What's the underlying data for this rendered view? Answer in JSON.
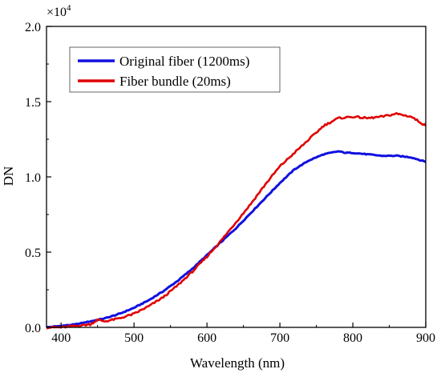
{
  "chart_data": {
    "type": "line",
    "xlabel": "Wavelength (nm)",
    "ylabel": "DN",
    "y_multiplier_label": "×10",
    "y_multiplier_exponent": "4",
    "xlim": [
      380,
      900
    ],
    "ylim": [
      0,
      2.0
    ],
    "x_ticks": [
      "400",
      "500",
      "600",
      "700",
      "800",
      "900"
    ],
    "y_ticks": [
      "0.0",
      "0.5",
      "1.0",
      "1.5",
      "2.0"
    ],
    "grid": false,
    "legend_position": "top-left",
    "series": [
      {
        "name": "Original fiber (1200ms)",
        "color": "#1010e0",
        "x": [
          380,
          400,
          420,
          440,
          460,
          480,
          500,
          520,
          540,
          560,
          580,
          600,
          620,
          640,
          660,
          680,
          700,
          720,
          740,
          760,
          770,
          780,
          790,
          800,
          820,
          840,
          860,
          880,
          900
        ],
        "y": [
          0.0,
          0.01,
          0.02,
          0.04,
          0.06,
          0.09,
          0.13,
          0.18,
          0.24,
          0.31,
          0.39,
          0.48,
          0.57,
          0.66,
          0.76,
          0.86,
          0.96,
          1.05,
          1.11,
          1.15,
          1.16,
          1.17,
          1.16,
          1.16,
          1.15,
          1.14,
          1.14,
          1.13,
          1.1
        ]
      },
      {
        "name": "Fiber bundle (20ms)",
        "color": "#e00000",
        "x": [
          380,
          400,
          420,
          440,
          450,
          460,
          480,
          500,
          520,
          540,
          560,
          580,
          600,
          620,
          640,
          660,
          680,
          700,
          720,
          740,
          760,
          780,
          800,
          820,
          840,
          860,
          880,
          900
        ],
        "y": [
          0.0,
          0.0,
          0.01,
          0.02,
          0.05,
          0.04,
          0.06,
          0.09,
          0.14,
          0.2,
          0.28,
          0.37,
          0.47,
          0.58,
          0.7,
          0.82,
          0.95,
          1.07,
          1.16,
          1.25,
          1.34,
          1.39,
          1.4,
          1.39,
          1.4,
          1.42,
          1.4,
          1.34
        ]
      }
    ]
  }
}
